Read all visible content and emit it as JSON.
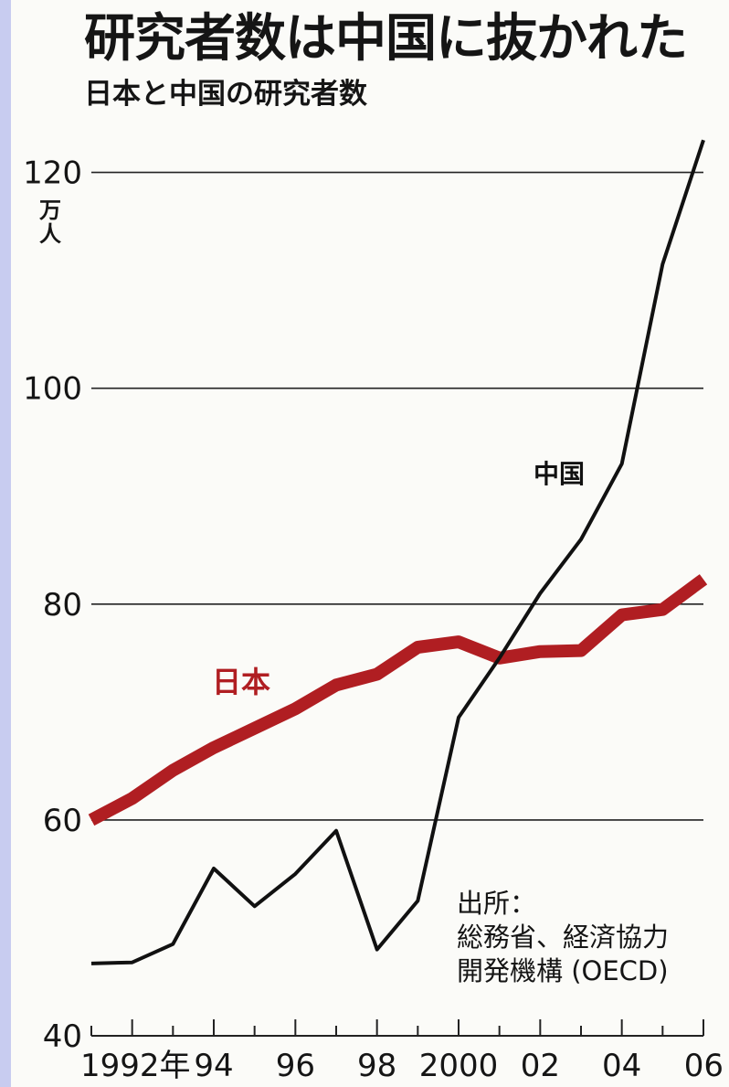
{
  "header": {
    "title": "研究者数は中国に抜かれた",
    "subtitle": "日本と中国の研究者数"
  },
  "source": {
    "label": "出所：",
    "line1": "総務省、経済協力",
    "line2": "開発機構 (OECD)"
  },
  "chart_data": {
    "type": "line",
    "title": "研究者数は中国に抜かれた",
    "subtitle": "日本と中国の研究者数",
    "ylabel_unit": "万人",
    "ylim": [
      40,
      122
    ],
    "yticks": [
      40,
      60,
      80,
      100,
      120
    ],
    "x": [
      1991,
      1992,
      1993,
      1994,
      1995,
      1996,
      1997,
      1998,
      1999,
      2000,
      2001,
      2002,
      2003,
      2004,
      2005,
      2006
    ],
    "xlim": [
      1991,
      2006
    ],
    "xtick_labels": [
      {
        "x": 1992,
        "label": "1992年"
      },
      {
        "x": 1994,
        "label": "94"
      },
      {
        "x": 1996,
        "label": "96"
      },
      {
        "x": 1998,
        "label": "98"
      },
      {
        "x": 2000,
        "label": "2000"
      },
      {
        "x": 2002,
        "label": "02"
      },
      {
        "x": 2004,
        "label": "04"
      },
      {
        "x": 2006,
        "label": "06"
      }
    ],
    "grid": true,
    "series": [
      {
        "name": "日本",
        "color": "#b01e22",
        "values": [
          60.0,
          62.0,
          64.6,
          66.7,
          68.5,
          70.3,
          72.5,
          73.5,
          76.0,
          76.5,
          75.0,
          75.6,
          75.7,
          79.0,
          79.5,
          82.3
        ]
      },
      {
        "name": "中国",
        "color": "#111111",
        "values": [
          46.7,
          46.8,
          48.5,
          55.5,
          52.0,
          55.0,
          59.0,
          48.0,
          52.5,
          69.5,
          75.0,
          81.0,
          86.0,
          93.0,
          111.5,
          123.0
        ]
      }
    ]
  }
}
